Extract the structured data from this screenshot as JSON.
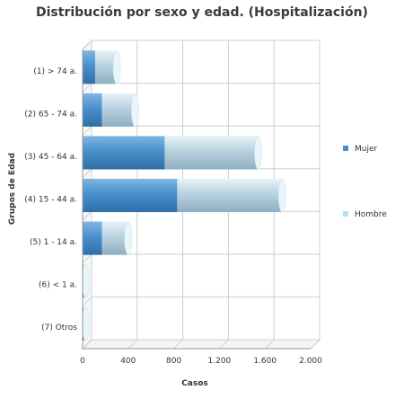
{
  "chart_data": {
    "type": "bar",
    "orientation": "horizontal",
    "stacked": true,
    "title": "Distribución por sexo y edad. (Hospitalización)",
    "xlabel": "Casos",
    "ylabel": "Grupos de Edad",
    "categories": [
      "(1) > 74 a.",
      "(2) 65 - 74 a.",
      "(3) 45 - 64 a.",
      "(4) 15 - 44 a.",
      "(5) 1 - 14 a.",
      "(6) < 1 a.",
      "(7) Otros"
    ],
    "series": [
      {
        "name": "Mujer",
        "color": "#4a90cc",
        "values": [
          110,
          170,
          720,
          830,
          170,
          8,
          8
        ]
      },
      {
        "name": "Hombre",
        "color": "#aee3f5",
        "values": [
          190,
          290,
          820,
          920,
          230,
          20,
          20
        ]
      }
    ],
    "xlim": [
      0,
      2000
    ],
    "xticks": [
      0,
      400,
      800,
      1200,
      1600,
      2000
    ],
    "xtick_labels": [
      "0",
      "400",
      "800",
      "1.200",
      "1.600",
      "2.000"
    ],
    "grid": true,
    "legend_position": "right"
  }
}
